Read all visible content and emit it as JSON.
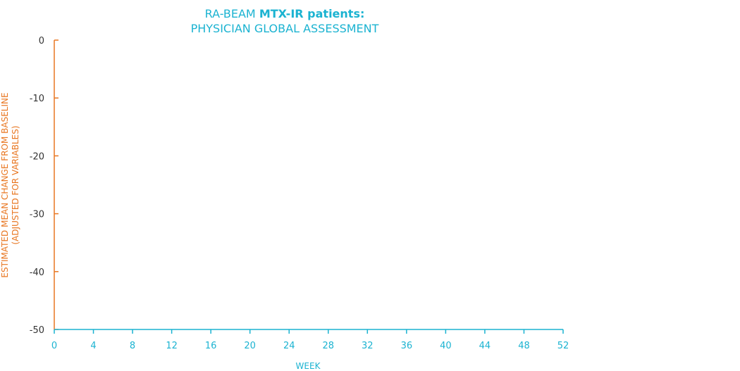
{
  "colors": {
    "title": "#1bb3d1",
    "x_axis": "#1bb3d1",
    "y_axis": "#e87722",
    "y_tick_text": "#333333"
  },
  "chart_data": {
    "type": "line",
    "title_prefix": "RA-BEAM ",
    "title_bold": "MTX-IR patients:",
    "subtitle": "PHYSICIAN GLOBAL ASSESSMENT",
    "xlabel": "WEEK",
    "ylabel_line1": "ESTIMATED MEAN CHANGE FROM BASELINE",
    "ylabel_line2": "(ADJUSTED FOR VARIABLES)",
    "xlim": [
      0,
      52
    ],
    "ylim": [
      -50,
      0
    ],
    "x_ticks": [
      0,
      4,
      8,
      12,
      16,
      20,
      24,
      28,
      32,
      36,
      40,
      44,
      48,
      52
    ],
    "y_ticks": [
      0,
      -10,
      -20,
      -30,
      -40,
      -50
    ],
    "grid": false,
    "series": []
  }
}
